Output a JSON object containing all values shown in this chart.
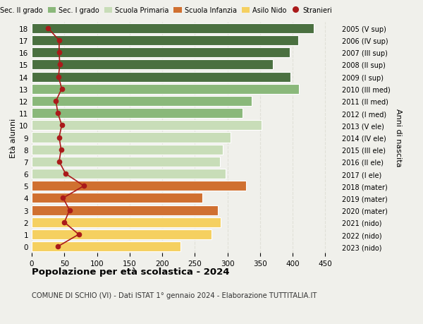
{
  "ages": [
    18,
    17,
    16,
    15,
    14,
    13,
    12,
    11,
    10,
    9,
    8,
    7,
    6,
    5,
    4,
    3,
    2,
    1,
    0
  ],
  "years": [
    "2005 (V sup)",
    "2006 (IV sup)",
    "2007 (III sup)",
    "2008 (II sup)",
    "2009 (I sup)",
    "2010 (III med)",
    "2011 (II med)",
    "2012 (I med)",
    "2013 (V ele)",
    "2014 (IV ele)",
    "2015 (III ele)",
    "2016 (II ele)",
    "2017 (I ele)",
    "2018 (mater)",
    "2019 (mater)",
    "2020 (mater)",
    "2021 (nido)",
    "2022 (nido)",
    "2023 (nido)"
  ],
  "values": [
    432,
    408,
    395,
    370,
    397,
    410,
    337,
    323,
    352,
    305,
    293,
    288,
    297,
    328,
    262,
    285,
    290,
    275,
    228
  ],
  "stranieri": [
    25,
    42,
    42,
    43,
    41,
    46,
    37,
    40,
    46,
    42,
    45,
    42,
    52,
    80,
    48,
    58,
    50,
    72,
    40
  ],
  "bar_colors": [
    "#4a7040",
    "#4a7040",
    "#4a7040",
    "#4a7040",
    "#4a7040",
    "#8ab87a",
    "#8ab87a",
    "#8ab87a",
    "#c8ddb8",
    "#c8ddb8",
    "#c8ddb8",
    "#c8ddb8",
    "#c8ddb8",
    "#d07030",
    "#d07030",
    "#d07030",
    "#f5d060",
    "#f5d060",
    "#f5d060"
  ],
  "stranieri_color": "#aa1a1a",
  "title": "Popolazione per età scolastica - 2024",
  "subtitle": "COMUNE DI SCHIO (VI) - Dati ISTAT 1° gennaio 2024 - Elaborazione TUTTITALIA.IT",
  "ylabel_left": "Età alunni",
  "ylabel_right": "Anni di nascita",
  "xlim": [
    0,
    470
  ],
  "xticks": [
    0,
    50,
    100,
    150,
    200,
    250,
    300,
    350,
    400,
    450
  ],
  "legend_labels": [
    "Sec. II grado",
    "Sec. I grado",
    "Scuola Primaria",
    "Scuola Infanzia",
    "Asilo Nido",
    "Stranieri"
  ],
  "legend_colors": [
    "#4a7040",
    "#8ab87a",
    "#c8ddb8",
    "#d07030",
    "#f5d060",
    "#aa1a1a"
  ],
  "background_color": "#f0f0eb",
  "grid_color": "#e0e0d8",
  "bar_edgecolor": "white",
  "bar_height": 0.82
}
